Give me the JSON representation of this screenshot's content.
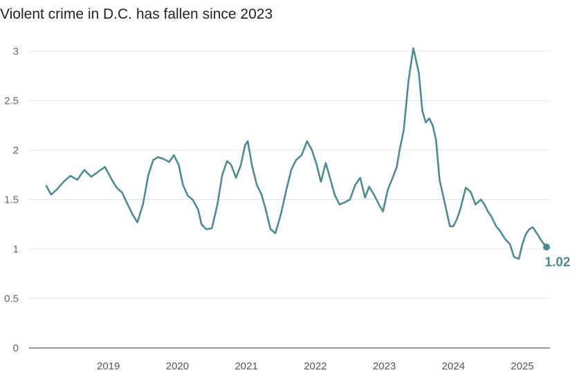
{
  "chart_data": {
    "type": "line",
    "title": "Violent crime in D.C. has fallen since 2023",
    "xlabel": "",
    "ylabel": "",
    "ylim": [
      0,
      3.1
    ],
    "xlim": [
      2018.35,
      2025.9
    ],
    "yticks": [
      0,
      0.5,
      1,
      1.5,
      2,
      2.5,
      3
    ],
    "ytick_labels": [
      "0",
      "0.5",
      "1",
      "1.5",
      "2",
      "2.5",
      "3"
    ],
    "xticks": [
      2019.5,
      2020.5,
      2021.5,
      2022.5,
      2023.5,
      2024.5,
      2025.5
    ],
    "xtick_labels": [
      "2019",
      "2020",
      "2021",
      "2022",
      "2023",
      "2024",
      "2025"
    ],
    "gridlines": true,
    "color": "#4a8c93",
    "end_label": "1.02",
    "series": [
      {
        "name": "Violent crime",
        "x": [
          2018.6,
          2018.67,
          2018.75,
          2018.85,
          2018.95,
          2019.05,
          2019.15,
          2019.25,
          2019.35,
          2019.45,
          2019.55,
          2019.62,
          2019.7,
          2019.78,
          2019.85,
          2019.92,
          2020.0,
          2020.08,
          2020.15,
          2020.22,
          2020.3,
          2020.38,
          2020.45,
          2020.52,
          2020.58,
          2020.65,
          2020.72,
          2020.8,
          2020.85,
          2020.92,
          2021.0,
          2021.08,
          2021.15,
          2021.22,
          2021.28,
          2021.35,
          2021.42,
          2021.48,
          2021.52,
          2021.58,
          2021.65,
          2021.72,
          2021.78,
          2021.85,
          2021.92,
          2022.0,
          2022.08,
          2022.15,
          2022.22,
          2022.3,
          2022.38,
          2022.45,
          2022.52,
          2022.58,
          2022.65,
          2022.72,
          2022.78,
          2022.85,
          2022.92,
          2023.0,
          2023.08,
          2023.15,
          2023.22,
          2023.28,
          2023.35,
          2023.42,
          2023.48,
          2023.55,
          2023.62,
          2023.68,
          2023.72,
          2023.78,
          2023.85,
          2023.92,
          2024.0,
          2024.05,
          2024.1,
          2024.15,
          2024.2,
          2024.25,
          2024.3,
          2024.38,
          2024.45,
          2024.5,
          2024.55,
          2024.6,
          2024.68,
          2024.75,
          2024.82,
          2024.9,
          2024.95,
          2025.0,
          2025.05,
          2025.12,
          2025.18,
          2025.25,
          2025.32,
          2025.38,
          2025.45,
          2025.5,
          2025.55,
          2025.6,
          2025.65,
          2025.72,
          2025.78,
          2025.85
        ],
        "values": [
          1.64,
          1.55,
          1.6,
          1.68,
          1.74,
          1.7,
          1.8,
          1.73,
          1.78,
          1.83,
          1.7,
          1.62,
          1.57,
          1.45,
          1.35,
          1.27,
          1.45,
          1.75,
          1.9,
          1.93,
          1.91,
          1.88,
          1.95,
          1.85,
          1.65,
          1.54,
          1.5,
          1.4,
          1.25,
          1.2,
          1.21,
          1.45,
          1.75,
          1.89,
          1.85,
          1.72,
          1.85,
          2.05,
          2.09,
          1.85,
          1.65,
          1.55,
          1.4,
          1.2,
          1.16,
          1.35,
          1.6,
          1.8,
          1.9,
          1.95,
          2.09,
          2.0,
          1.85,
          1.68,
          1.87,
          1.7,
          1.55,
          1.45,
          1.47,
          1.5,
          1.65,
          1.72,
          1.52,
          1.63,
          1.55,
          1.45,
          1.38,
          1.6,
          1.72,
          1.83,
          2.0,
          2.2,
          2.7,
          3.03,
          2.78,
          2.4,
          2.28,
          2.32,
          2.25,
          2.1,
          1.7,
          1.45,
          1.23,
          1.23,
          1.3,
          1.4,
          1.62,
          1.58,
          1.45,
          1.5,
          1.45,
          1.38,
          1.33,
          1.23,
          1.18,
          1.1,
          1.05,
          0.92,
          0.9,
          1.05,
          1.15,
          1.2,
          1.22,
          1.15,
          1.08,
          1.02
        ]
      }
    ]
  }
}
